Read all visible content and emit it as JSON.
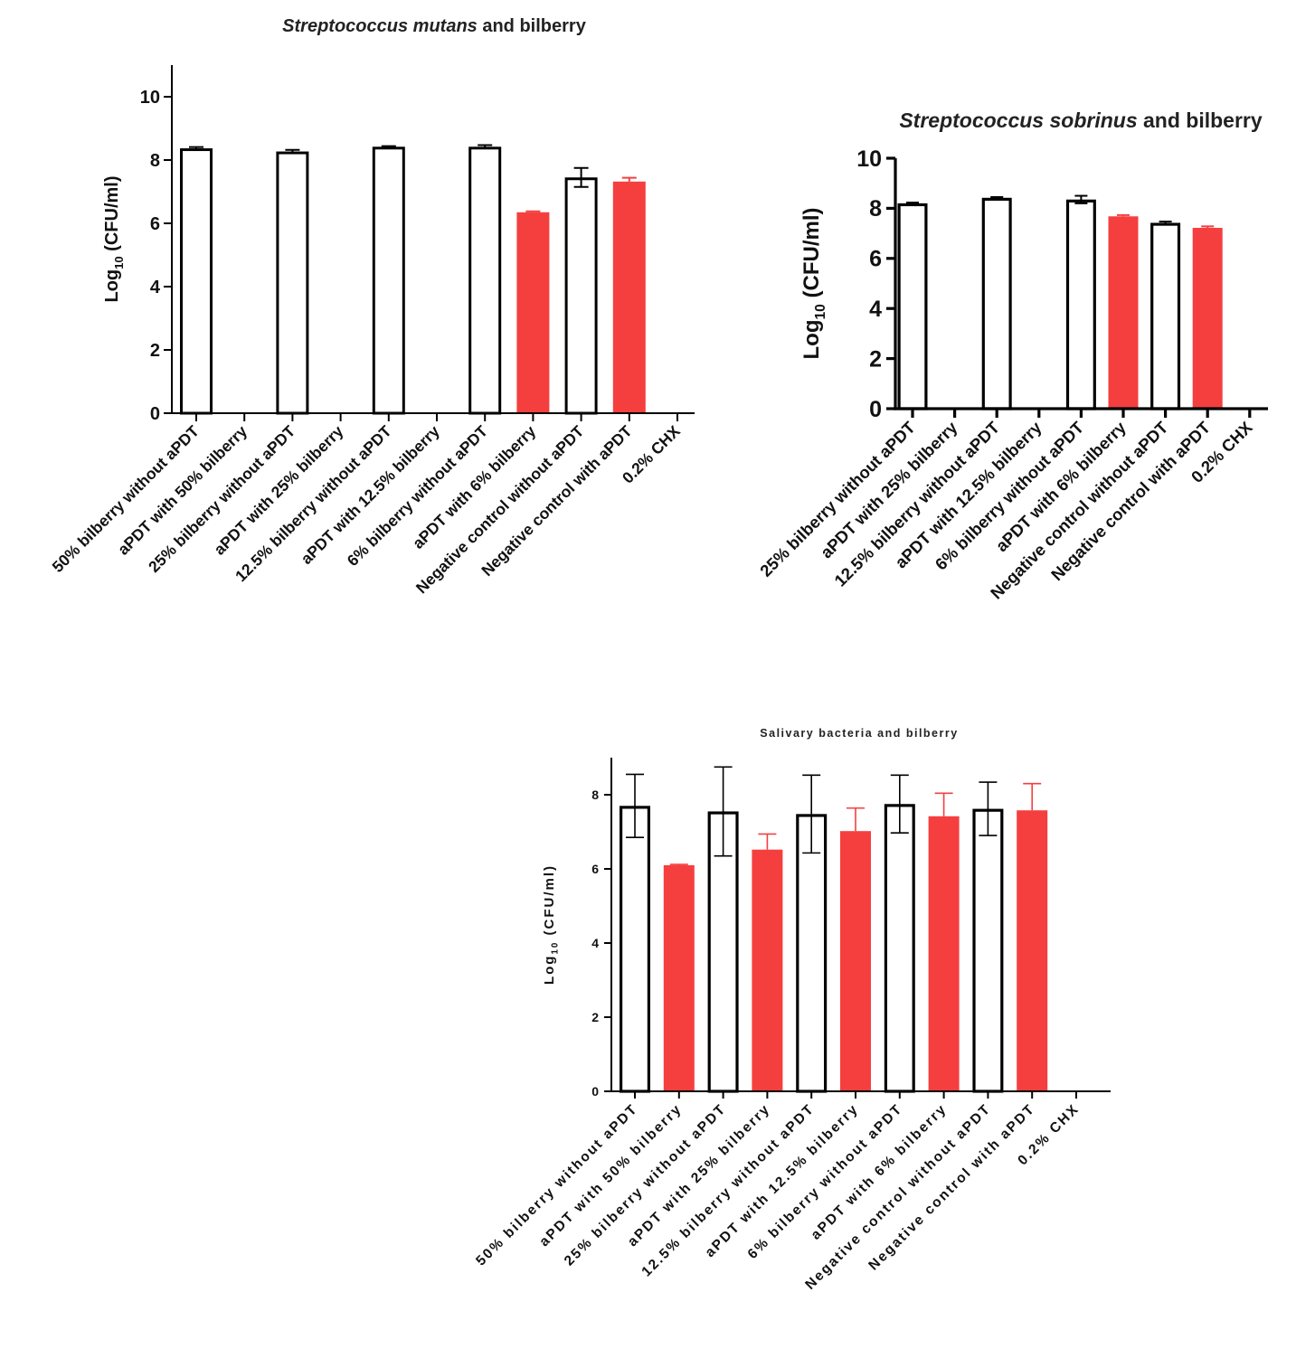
{
  "colors": {
    "red": "#f53f3f",
    "black": "#000000",
    "white": "#ffffff"
  },
  "chart_data": [
    {
      "type": "bar",
      "title_italic": "Streptococcus mutans",
      "title_rest": " and bilberry",
      "ylabel_base": "Log",
      "ylabel_sub": "10",
      "ylabel_rest": " (CFU/ml)",
      "xlabel": "",
      "ylim": [
        0,
        11
      ],
      "yticks": [
        0,
        2,
        4,
        6,
        8,
        10
      ],
      "categories": [
        "50% bilberry without aPDT",
        "aPDT with 50% bilberry",
        "25% bilberry without aPDT",
        "aPDT with 25% bilberry",
        "12.5% bilberry without aPDT",
        "aPDT with 12.5% bilberry",
        "6% bilberry without aPDT",
        "aPDT with 6% bilberry",
        "Negative control without aPDT",
        "Negative control with aPDT",
        "0.2% CHX"
      ],
      "values": [
        8.37,
        0,
        8.27,
        0,
        8.42,
        0,
        8.42,
        6.35,
        7.45,
        7.32,
        0
      ],
      "errors": [
        0.04,
        0,
        0.05,
        0,
        0.02,
        0,
        0.05,
        0.03,
        0.3,
        0.12,
        0
      ],
      "fill": [
        "white",
        "white",
        "white",
        "white",
        "white",
        "white",
        "white",
        "red",
        "white",
        "red",
        "white"
      ]
    },
    {
      "type": "bar",
      "title_italic": "Streptococcus sobrinus",
      "title_rest": " and bilberry",
      "ylabel_base": "Log",
      "ylabel_sub": "10",
      "ylabel_rest": " (CFU/ml)",
      "xlabel": "",
      "ylim": [
        0,
        10
      ],
      "yticks": [
        0,
        2,
        4,
        6,
        8,
        10
      ],
      "categories": [
        "25% bilberry without aPDT",
        "aPDT with 25% bilberry",
        "12.5% bilberry without aPDT",
        "aPDT with 12.5% bilberry",
        "6% bilberry without aPDT",
        "aPDT with 6% bilberry",
        "Negative control without aPDT",
        "Negative control with aPDT",
        "0.2% CHX"
      ],
      "values": [
        8.2,
        0,
        8.42,
        0,
        8.35,
        7.68,
        7.42,
        7.22,
        0
      ],
      "errors": [
        0.03,
        0,
        0.03,
        0,
        0.15,
        0.05,
        0.05,
        0.06,
        0
      ],
      "fill": [
        "white",
        "white",
        "white",
        "white",
        "white",
        "red",
        "white",
        "red",
        "white"
      ]
    },
    {
      "type": "bar",
      "title_italic": "",
      "title_rest": "Salivary bacteria and bilberry",
      "ylabel_base": "Log",
      "ylabel_sub": "10",
      "ylabel_rest": " (CFU/ml)",
      "xlabel": "",
      "ylim": [
        0,
        9
      ],
      "yticks": [
        0,
        2,
        4,
        6,
        8
      ],
      "categories": [
        "50% bilberry without aPDT",
        "aPDT with 50% bilberry",
        "25% bilberry without aPDT",
        "aPDT with 25% bilberry",
        "12.5% bilberry without aPDT",
        "aPDT with 12.5% bilberry",
        "6% bilberry without aPDT",
        "aPDT with 6% bilberry",
        "Negative control without aPDT",
        "Negative control with aPDT",
        "0.2% CHX"
      ],
      "values": [
        7.7,
        6.1,
        7.55,
        6.52,
        7.48,
        7.02,
        7.75,
        7.42,
        7.62,
        7.58,
        0
      ],
      "errors": [
        0.85,
        0.02,
        1.2,
        0.42,
        1.05,
        0.62,
        0.78,
        0.62,
        0.72,
        0.72,
        0
      ],
      "fill": [
        "white",
        "red",
        "white",
        "red",
        "white",
        "red",
        "white",
        "red",
        "white",
        "red",
        "white"
      ]
    }
  ]
}
